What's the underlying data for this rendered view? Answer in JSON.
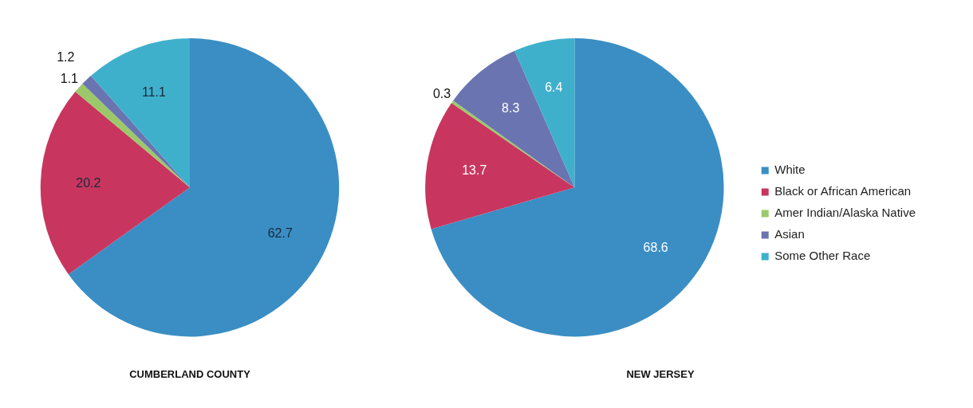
{
  "chart_data": [
    {
      "type": "pie",
      "title": "CUMBERLAND COUNTY",
      "categories": [
        null,
        null,
        null,
        null,
        null
      ],
      "values": [
        62.7,
        20.2,
        1.1,
        1.2,
        11.1
      ],
      "colors": [
        "#3a8ec4",
        "#c8365f",
        "#9bc96a",
        "#6a74b0",
        "#3fb0cc"
      ],
      "data_labels": true,
      "legend": false
    },
    {
      "type": "pie",
      "title": "NEW JERSEY",
      "categories": [
        "White",
        "Black or African American",
        "Amer Indian/Alaska Native",
        "Asian",
        "Some Other Race"
      ],
      "values": [
        68.6,
        13.7,
        0.3,
        8.3,
        6.4
      ],
      "colors": [
        "#3a8ec4",
        "#c8365f",
        "#9bc96a",
        "#6a74b0",
        "#3fb0cc"
      ],
      "data_labels": true,
      "legend": "right"
    }
  ]
}
